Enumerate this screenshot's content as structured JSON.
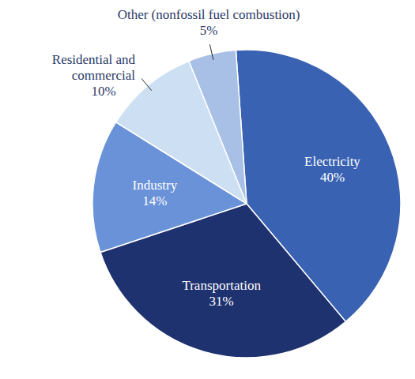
{
  "chart_data": {
    "type": "pie",
    "categories": [
      "Electricity",
      "Transportation",
      "Industry",
      "Residential and commercial",
      "Other (nonfossil fuel combustion)"
    ],
    "values": [
      40,
      31,
      14,
      10,
      5
    ],
    "value_labels": [
      "40%",
      "31%",
      "14%",
      "10%",
      "5%"
    ],
    "colors": [
      "#3a62b3",
      "#1f3270",
      "#6a92d8",
      "#cde0f3",
      "#a8c0e5"
    ],
    "data_labels": true
  }
}
